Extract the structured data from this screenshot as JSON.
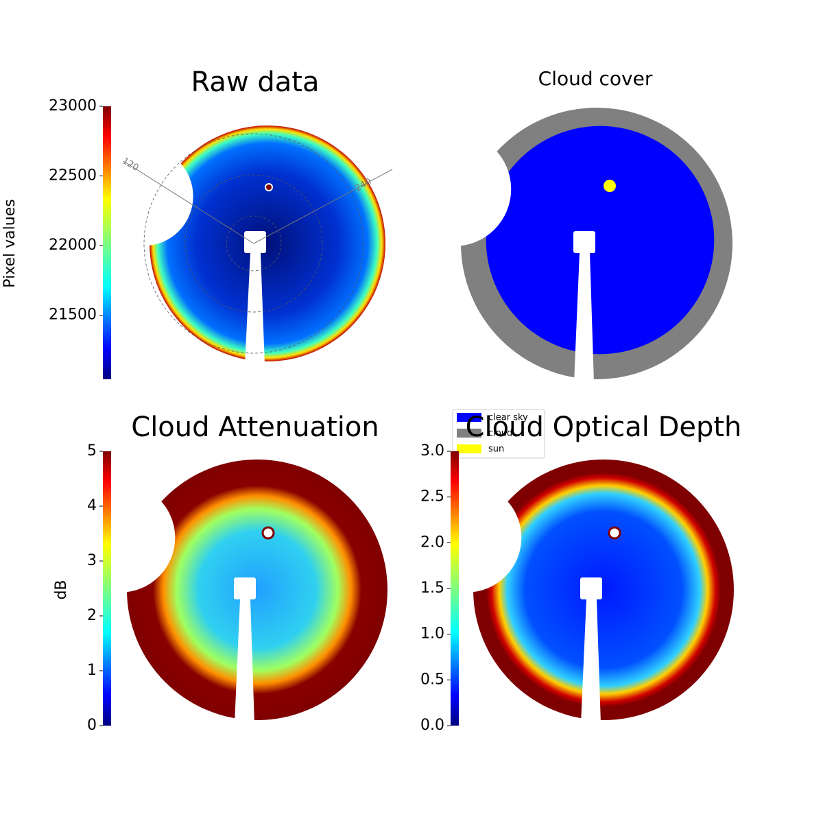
{
  "chart_data": [
    {
      "type": "image",
      "title": "Raw data",
      "colorbar_label": "Pixel values",
      "clim": [
        21040,
        23000
      ],
      "cticks": [
        21500,
        22000,
        22500,
        23000
      ],
      "colormap": "jet",
      "polar_labels": [
        "120",
        "240"
      ]
    },
    {
      "type": "image",
      "title": "Cloud cover",
      "legend": "below",
      "series": [
        {
          "name": "clear sky",
          "color": "#0000ff"
        },
        {
          "name": "cloud",
          "color": "#808080"
        },
        {
          "name": "sun",
          "color": "#ffff00"
        }
      ]
    },
    {
      "type": "image",
      "title": "Cloud Attenuation",
      "colorbar_label": "dB",
      "clim": [
        0,
        5
      ],
      "cticks": [
        0,
        1,
        2,
        3,
        4,
        5
      ],
      "colormap": "jet"
    },
    {
      "type": "image",
      "title": "Cloud Optical Depth",
      "clim": [
        0,
        3
      ],
      "cticks": [
        {
          "value": 0,
          "label": "0.0"
        },
        {
          "value": 0.5,
          "label": "0.5"
        },
        {
          "value": 1,
          "label": "1.0"
        },
        {
          "value": 1.5,
          "label": "1.5"
        },
        {
          "value": 2,
          "label": "2.0"
        },
        {
          "value": 2.5,
          "label": "2.5"
        },
        {
          "value": 3,
          "label": "3.0"
        }
      ],
      "colormap": "jet"
    }
  ]
}
